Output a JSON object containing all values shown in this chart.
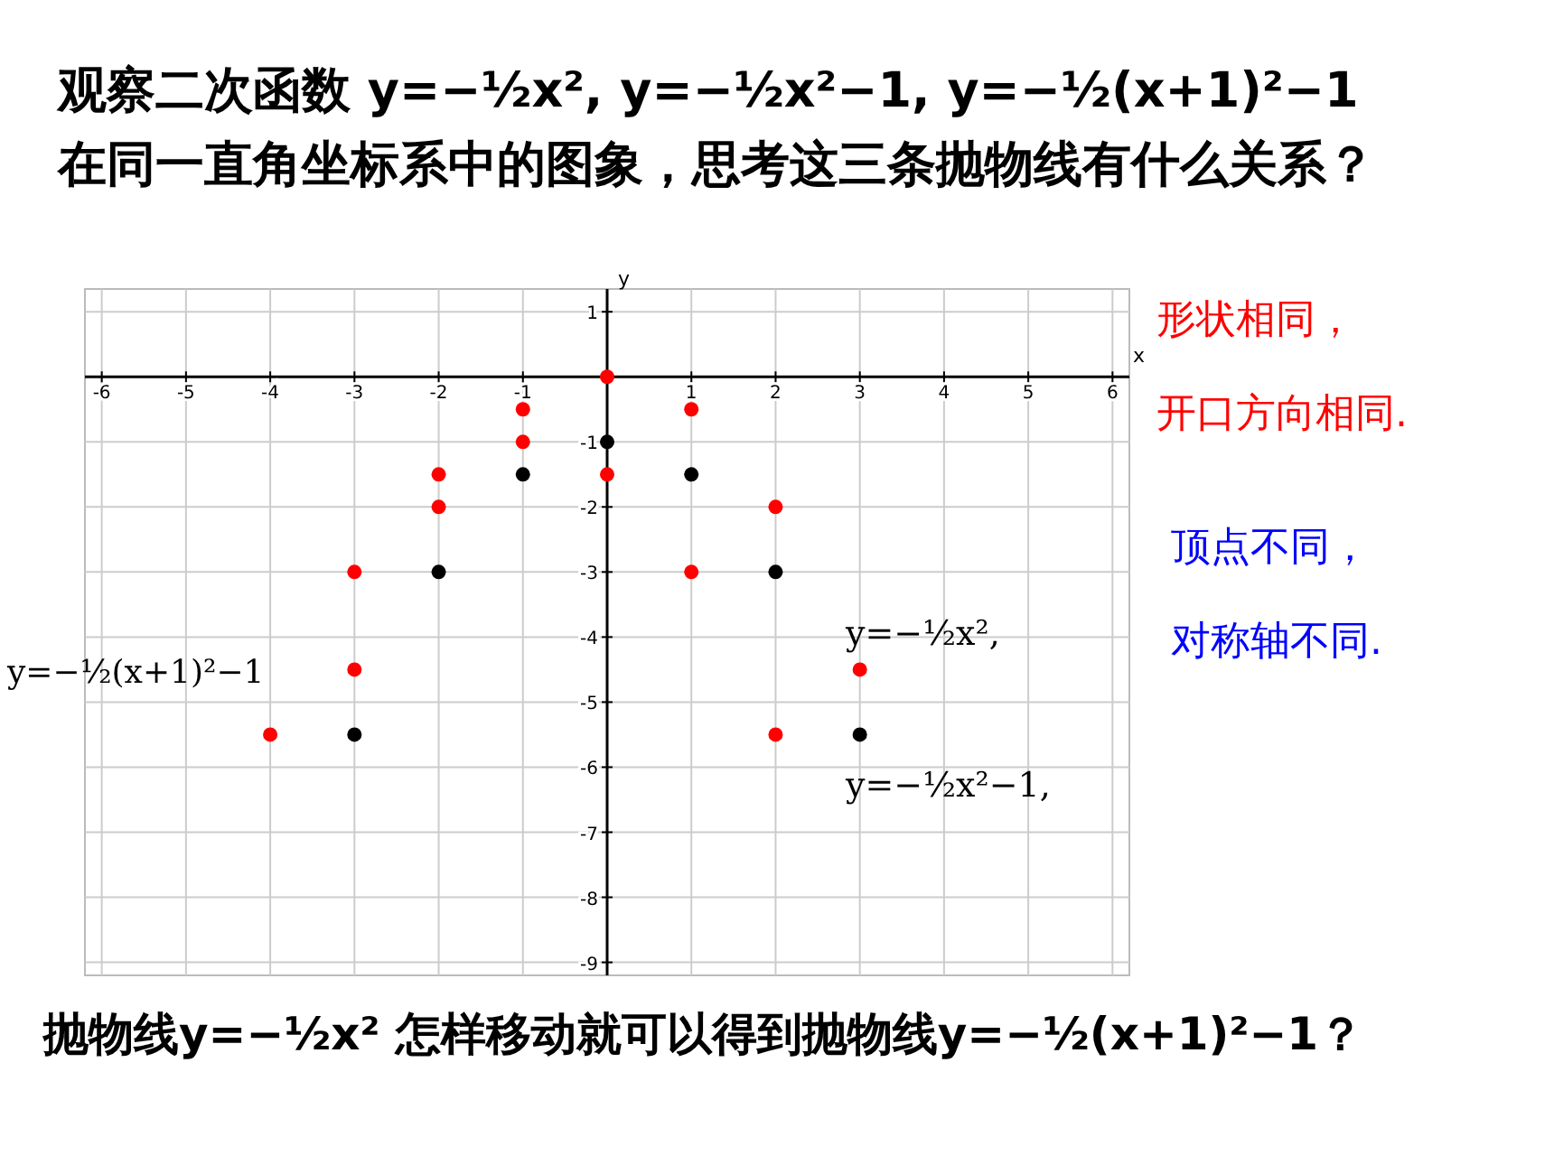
{
  "chart_data": {
    "type": "scatter",
    "title": "观察二次函数 y=−½x², y=−½x²−1, y=−½(x+1)²−1 在同一直角坐标系中的图象，思考这三条抛物线有什么关系？",
    "xlabel": "x",
    "ylabel": "y",
    "xlim": [
      -6.2,
      6.2
    ],
    "ylim": [
      -9.2,
      1.35
    ],
    "xticks": [
      -6,
      -5,
      -4,
      -3,
      -2,
      -1,
      1,
      2,
      3,
      4,
      5,
      6
    ],
    "yticks": [
      1,
      -1,
      -2,
      -3,
      -4,
      -5,
      -6,
      -7,
      -8,
      -9
    ],
    "grid": true,
    "marker": "circle",
    "series": [
      {
        "color": "#ff0000",
        "x": [
          -3,
          -2,
          -1,
          0,
          1,
          2,
          3
        ],
        "values": [
          -4.5,
          -2,
          -0.5,
          0,
          -0.5,
          -2,
          -4.5
        ]
      },
      {
        "color": "#000000",
        "x": [
          -3,
          -2,
          -1,
          0,
          1,
          2,
          3
        ],
        "values": [
          -5.5,
          -3,
          -1.5,
          -1,
          -1.5,
          -3,
          -5.5
        ]
      },
      {
        "color": "#ff0000",
        "x": [
          -4,
          -3,
          -2,
          -1,
          0,
          1,
          2
        ],
        "values": [
          -5.5,
          -3,
          -1.5,
          -1,
          -1.5,
          -3,
          -5.5
        ]
      }
    ],
    "annotations": [
      "y=−½x²,",
      "y=−½x²−1,",
      "y=−½(x+1)²−1",
      "形状相同，",
      "开口方向相同.",
      "顶点不同，",
      "对称轴不同.",
      "抛物线y=−½x² 怎样移动就可以得到抛物线y=−½(x+1)²−1？"
    ]
  }
}
